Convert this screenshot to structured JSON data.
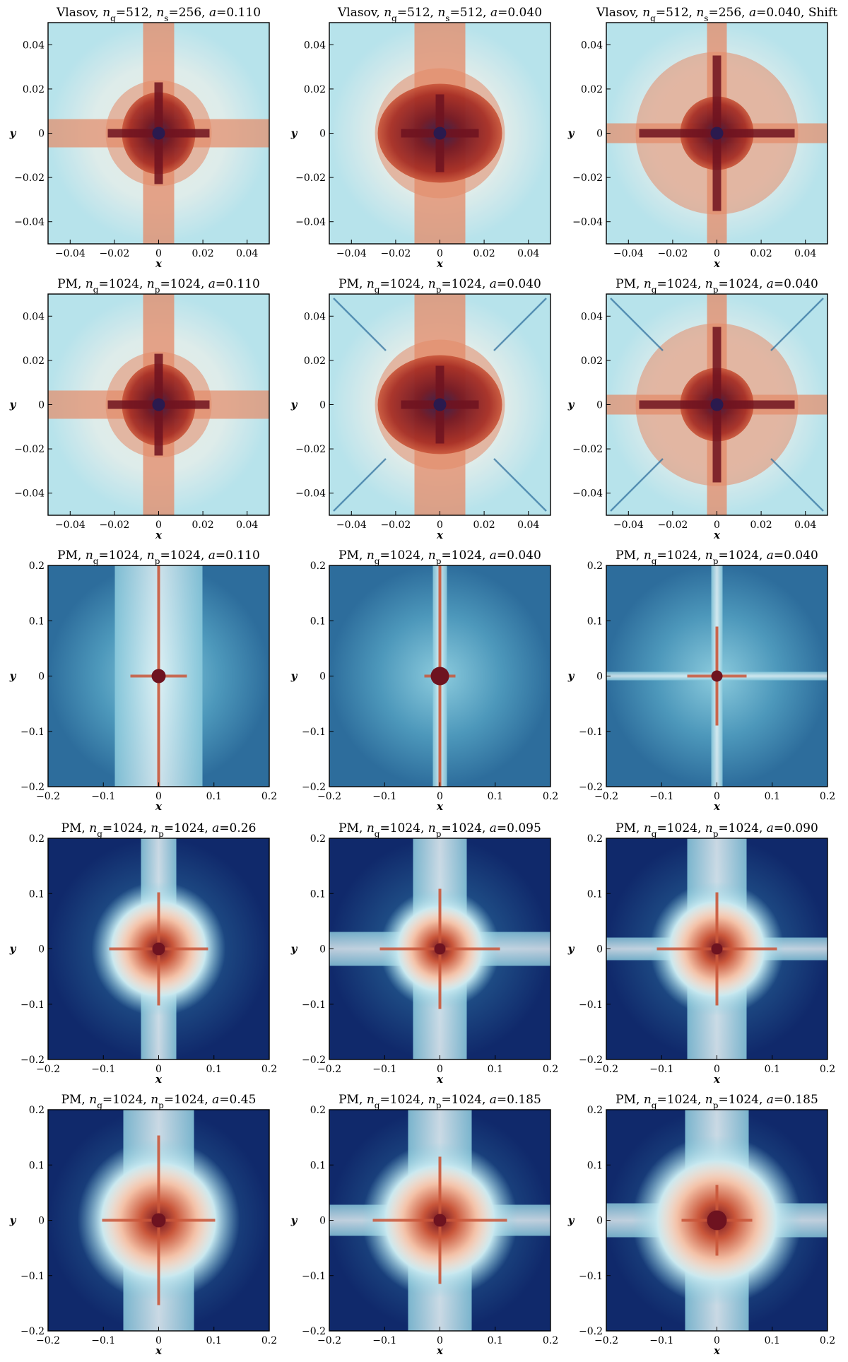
{
  "figure": {
    "rows": 5,
    "cols": 3
  },
  "palettes": {
    "red_light": [
      "#2a1a4e",
      "#6e1320",
      "#a52b22",
      "#c9563a",
      "#e48a67",
      "#f3c0a6",
      "#fbeee3",
      "#f3f1ea",
      "#d5eef2",
      "#b7e3ec"
    ],
    "blue_field": [
      "#fdeee6",
      "#f6d5c4",
      "#c7e8f0",
      "#8ccbdd",
      "#4d98bb",
      "#2d6d9c",
      "#1f4e86",
      "#10296b"
    ]
  },
  "chart_data": [
    {
      "type": "heatmap",
      "panel": "r1c1",
      "title": "Vlasov, n_g=512, n_s=256, a=0.110",
      "title_parts": {
        "code": "Vlasov",
        "p1": "g",
        "v1": "=512",
        "p2": "s",
        "v2": "=256",
        "a": "=0.110",
        "extra": ""
      },
      "xlim": [
        -0.05,
        0.05
      ],
      "ylim": [
        -0.05,
        0.05
      ],
      "xticks": [
        "−0.04",
        "−0.02",
        "0",
        "0.02",
        "0.04"
      ],
      "yticks": [
        "−0.04",
        "−0.02",
        "0",
        "0.02",
        "0.04"
      ],
      "xlabel": "x",
      "ylabel": "y",
      "colormap": "red_light"
    },
    {
      "type": "heatmap",
      "panel": "r1c2",
      "title": "Vlasov, n_g=512, n_s=512, a=0.040",
      "title_parts": {
        "code": "Vlasov",
        "p1": "g",
        "v1": "=512",
        "p2": "s",
        "v2": "=512",
        "a": "=0.040",
        "extra": ""
      },
      "xlim": [
        -0.05,
        0.05
      ],
      "ylim": [
        -0.05,
        0.05
      ],
      "xticks": [
        "−0.04",
        "−0.02",
        "0",
        "0.02",
        "0.04"
      ],
      "yticks": [
        "−0.04",
        "−0.02",
        "0",
        "0.02",
        "0.04"
      ],
      "xlabel": "x",
      "ylabel": "y",
      "colormap": "red_light"
    },
    {
      "type": "heatmap",
      "panel": "r1c3",
      "title": "Vlasov, n_g=512, n_s=256, a=0.040, Shift",
      "title_parts": {
        "code": "Vlasov",
        "p1": "g",
        "v1": "=512",
        "p2": "s",
        "v2": "=256",
        "a": "=0.040",
        "extra": ", Shift"
      },
      "xlim": [
        -0.05,
        0.05
      ],
      "ylim": [
        -0.05,
        0.05
      ],
      "xticks": [
        "−0.04",
        "−0.02",
        "0",
        "0.02",
        "0.04"
      ],
      "yticks": [
        "−0.04",
        "−0.02",
        "0",
        "0.02",
        "0.04"
      ],
      "xlabel": "x",
      "ylabel": "y",
      "colormap": "red_light"
    },
    {
      "type": "heatmap",
      "panel": "r2c1",
      "title": "PM, n_g=1024, n_p=1024, a=0.110",
      "title_parts": {
        "code": "PM",
        "p1": "g",
        "v1": "=1024",
        "p2": "p",
        "v2": "=1024",
        "a": "=0.110",
        "extra": ""
      },
      "xlim": [
        -0.05,
        0.05
      ],
      "ylim": [
        -0.05,
        0.05
      ],
      "xticks": [
        "−0.04",
        "−0.02",
        "0",
        "0.02",
        "0.04"
      ],
      "yticks": [
        "−0.04",
        "−0.02",
        "0",
        "0.02",
        "0.04"
      ],
      "xlabel": "x",
      "ylabel": "y",
      "colormap": "red_light"
    },
    {
      "type": "heatmap",
      "panel": "r2c2",
      "title": "PM, n_g=1024, n_p=1024, a=0.040",
      "title_parts": {
        "code": "PM",
        "p1": "g",
        "v1": "=1024",
        "p2": "p",
        "v2": "=1024",
        "a": "=0.040",
        "extra": ""
      },
      "xlim": [
        -0.05,
        0.05
      ],
      "ylim": [
        -0.05,
        0.05
      ],
      "xticks": [
        "−0.04",
        "−0.02",
        "0",
        "0.02",
        "0.04"
      ],
      "yticks": [
        "−0.04",
        "−0.02",
        "0",
        "0.02",
        "0.04"
      ],
      "xlabel": "x",
      "ylabel": "y",
      "colormap": "red_light"
    },
    {
      "type": "heatmap",
      "panel": "r2c3",
      "title": "PM, n_g=1024, n_p=1024, a=0.040",
      "title_parts": {
        "code": "PM",
        "p1": "g",
        "v1": "=1024",
        "p2": "p",
        "v2": "=1024",
        "a": "=0.040",
        "extra": ""
      },
      "xlim": [
        -0.05,
        0.05
      ],
      "ylim": [
        -0.05,
        0.05
      ],
      "xticks": [
        "−0.04",
        "−0.02",
        "0",
        "0.02",
        "0.04"
      ],
      "yticks": [
        "−0.04",
        "−0.02",
        "0",
        "0.02",
        "0.04"
      ],
      "xlabel": "x",
      "ylabel": "y",
      "colormap": "red_light"
    },
    {
      "type": "heatmap",
      "panel": "r3c1",
      "title": "PM, n_g=1024, n_p=1024, a=0.110",
      "title_parts": {
        "code": "PM",
        "p1": "g",
        "v1": "=1024",
        "p2": "p",
        "v2": "=1024",
        "a": "=0.110",
        "extra": ""
      },
      "xlim": [
        -0.2,
        0.2
      ],
      "ylim": [
        -0.2,
        0.2
      ],
      "xticks": [
        "−0.2",
        "−0.1",
        "0",
        "0.1",
        "0.2"
      ],
      "yticks": [
        "−0.2",
        "−0.1",
        "0",
        "0.1",
        "0.2"
      ],
      "xlabel": "x",
      "ylabel": "y",
      "colormap": "blue_field"
    },
    {
      "type": "heatmap",
      "panel": "r3c2",
      "title": "PM, n_g=1024, n_p=1024, a=0.040",
      "title_parts": {
        "code": "PM",
        "p1": "g",
        "v1": "=1024",
        "p2": "p",
        "v2": "=1024",
        "a": "=0.040",
        "extra": ""
      },
      "xlim": [
        -0.2,
        0.2
      ],
      "ylim": [
        -0.2,
        0.2
      ],
      "xticks": [
        "−0.2",
        "−0.1",
        "0",
        "0.1",
        "0.2"
      ],
      "yticks": [
        "−0.2",
        "−0.1",
        "0",
        "0.1",
        "0.2"
      ],
      "xlabel": "x",
      "ylabel": "y",
      "colormap": "blue_field"
    },
    {
      "type": "heatmap",
      "panel": "r3c3",
      "title": "PM, n_g=1024, n_p=1024, a=0.040",
      "title_parts": {
        "code": "PM",
        "p1": "g",
        "v1": "=1024",
        "p2": "p",
        "v2": "=1024",
        "a": "=0.040",
        "extra": ""
      },
      "xlim": [
        -0.2,
        0.2
      ],
      "ylim": [
        -0.2,
        0.2
      ],
      "xticks": [
        "−0.2",
        "−0.1",
        "0",
        "0.1",
        "0.2"
      ],
      "yticks": [
        "−0.2",
        "−0.1",
        "0",
        "0.1",
        "0.2"
      ],
      "xlabel": "x",
      "ylabel": "y",
      "colormap": "blue_field"
    },
    {
      "type": "heatmap",
      "panel": "r4c1",
      "title": "PM, n_g=1024, n_p=1024, a=0.26",
      "title_parts": {
        "code": "PM",
        "p1": "g",
        "v1": "=1024",
        "p2": "p",
        "v2": "=1024",
        "a": "=0.26",
        "extra": ""
      },
      "xlim": [
        -0.2,
        0.2
      ],
      "ylim": [
        -0.2,
        0.2
      ],
      "xticks": [
        "−0.2",
        "−0.1",
        "0",
        "0.1",
        "0.2"
      ],
      "yticks": [
        "−0.2",
        "−0.1",
        "0",
        "0.1",
        "0.2"
      ],
      "xlabel": "x",
      "ylabel": "y",
      "colormap": "blue_field"
    },
    {
      "type": "heatmap",
      "panel": "r4c2",
      "title": "PM, n_g=1024, n_p=1024, a=0.095",
      "title_parts": {
        "code": "PM",
        "p1": "g",
        "v1": "=1024",
        "p2": "p",
        "v2": "=1024",
        "a": "=0.095",
        "extra": ""
      },
      "xlim": [
        -0.2,
        0.2
      ],
      "ylim": [
        -0.2,
        0.2
      ],
      "xticks": [
        "−0.2",
        "−0.1",
        "0",
        "0.1",
        "0.2"
      ],
      "yticks": [
        "−0.2",
        "−0.1",
        "0",
        "0.1",
        "0.2"
      ],
      "xlabel": "x",
      "ylabel": "y",
      "colormap": "blue_field"
    },
    {
      "type": "heatmap",
      "panel": "r4c3",
      "title": "PM, n_g=1024, n_p=1024, a=0.090",
      "title_parts": {
        "code": "PM",
        "p1": "g",
        "v1": "=1024",
        "p2": "p",
        "v2": "=1024",
        "a": "=0.090",
        "extra": ""
      },
      "xlim": [
        -0.2,
        0.2
      ],
      "ylim": [
        -0.2,
        0.2
      ],
      "xticks": [
        "−0.2",
        "−0.1",
        "0",
        "0.1",
        "0.2"
      ],
      "yticks": [
        "−0.2",
        "−0.1",
        "0",
        "0.1",
        "0.2"
      ],
      "xlabel": "x",
      "ylabel": "y",
      "colormap": "blue_field"
    },
    {
      "type": "heatmap",
      "panel": "r5c1",
      "title": "PM, n_g=1024, n_p=1024, a=0.45",
      "title_parts": {
        "code": "PM",
        "p1": "g",
        "v1": "=1024",
        "p2": "p",
        "v2": "=1024",
        "a": "=0.45",
        "extra": ""
      },
      "xlim": [
        -0.2,
        0.2
      ],
      "ylim": [
        -0.2,
        0.2
      ],
      "xticks": [
        "−0.2",
        "−0.1",
        "0",
        "0.1",
        "0.2"
      ],
      "yticks": [
        "−0.2",
        "−0.1",
        "0",
        "0.1",
        "0.2"
      ],
      "xlabel": "x",
      "ylabel": "y",
      "colormap": "blue_field"
    },
    {
      "type": "heatmap",
      "panel": "r5c2",
      "title": "PM, n_g=1024, n_p=1024, a=0.185",
      "title_parts": {
        "code": "PM",
        "p1": "g",
        "v1": "=1024",
        "p2": "p",
        "v2": "=1024",
        "a": "=0.185",
        "extra": ""
      },
      "xlim": [
        -0.2,
        0.2
      ],
      "ylim": [
        -0.2,
        0.2
      ],
      "xticks": [
        "−0.2",
        "−0.1",
        "0",
        "0.1",
        "0.2"
      ],
      "yticks": [
        "−0.2",
        "−0.1",
        "0",
        "0.1",
        "0.2"
      ],
      "xlabel": "x",
      "ylabel": "y",
      "colormap": "blue_field"
    },
    {
      "type": "heatmap",
      "panel": "r5c3",
      "title": "PM, n_g=1024, n_p=1024, a=0.185",
      "title_parts": {
        "code": "PM",
        "p1": "g",
        "v1": "=1024",
        "p2": "p",
        "v2": "=1024",
        "a": "=0.185",
        "extra": ""
      },
      "xlim": [
        -0.2,
        0.2
      ],
      "ylim": [
        -0.2,
        0.2
      ],
      "xticks": [
        "−0.2",
        "−0.1",
        "0",
        "0.1",
        "0.2"
      ],
      "yticks": [
        "−0.2",
        "−0.1",
        "0",
        "0.1",
        "0.2"
      ],
      "xlabel": "x",
      "ylabel": "y",
      "colormap": "blue_field"
    }
  ]
}
